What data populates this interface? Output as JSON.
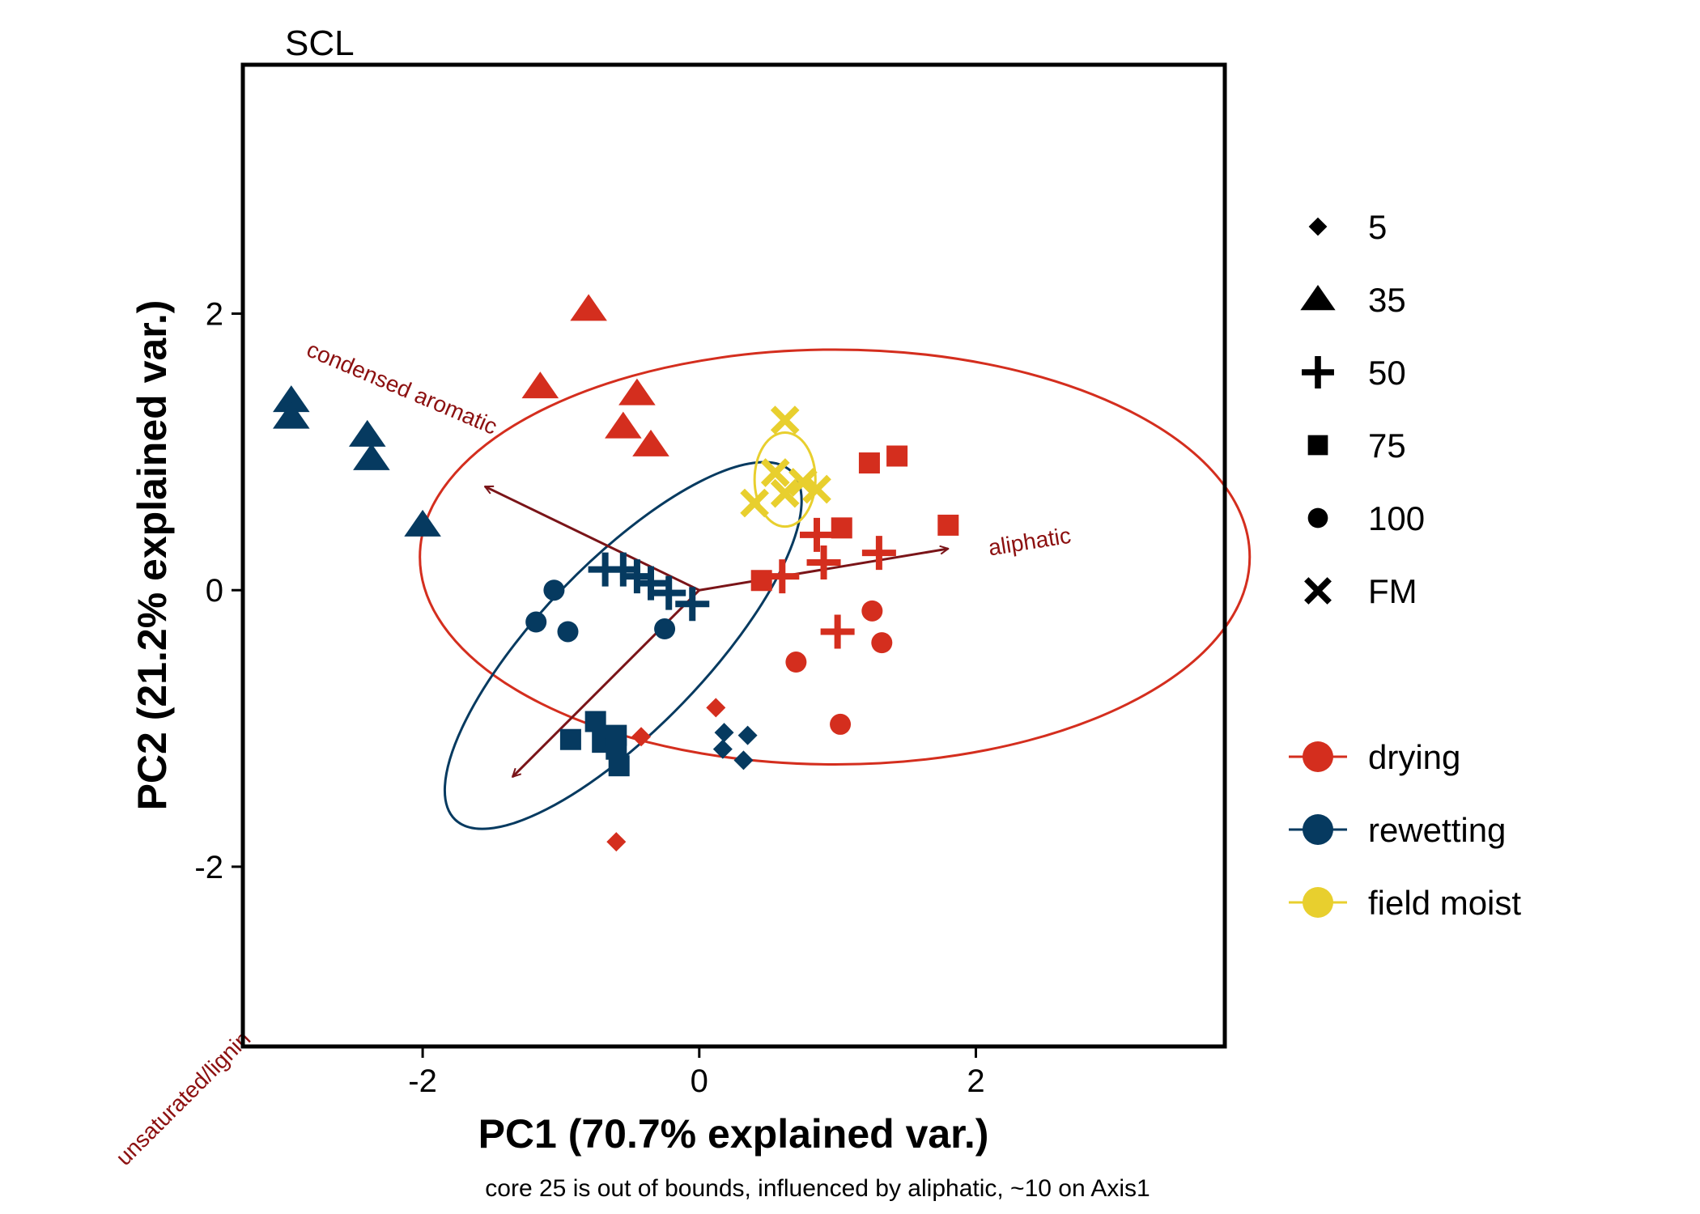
{
  "chart_data": {
    "type": "scatter",
    "title": "SCL",
    "xlabel": "PC1 (70.7% explained var.)",
    "ylabel": "PC2 (21.2% explained var.)",
    "caption": "core 25 is out of bounds, influenced by aliphatic, ~10 on Axis1",
    "xlim": [
      -3.3,
      3.8
    ],
    "ylim": [
      -3.3,
      3.8
    ],
    "x_ticks": [
      -2,
      0,
      2
    ],
    "y_ticks": [
      -2,
      0,
      2
    ],
    "x_tick_labels": [
      "-2",
      "0",
      "2"
    ],
    "y_tick_labels": [
      "-2",
      "0",
      "2"
    ],
    "grid": false,
    "colors": {
      "drying": "#D42E1E",
      "rewetting": "#063A60",
      "field moist": "#E8CF2E",
      "arrow": "#7A1418",
      "arrow_label": "#8C1010"
    },
    "shape_legend": {
      "labels": [
        "5",
        "35",
        "50",
        "75",
        "100",
        "FM"
      ],
      "shapes": [
        "diamond",
        "triangle",
        "plus",
        "square",
        "circle",
        "cross"
      ]
    },
    "color_legend": {
      "labels": [
        "drying",
        "rewetting",
        "field moist"
      ]
    },
    "loadings": [
      {
        "label": "aliphatic",
        "x": 1.8,
        "y": 0.3
      },
      {
        "label": "condensed aromatic",
        "x": -1.55,
        "y": 0.75
      },
      {
        "label": "unsaturated/lignin",
        "x": -1.35,
        "y": -1.35
      }
    ],
    "ellipses": [
      {
        "group": "drying",
        "cx": 0.98,
        "cy": 0.24,
        "rx": 3.0,
        "ry": 1.5,
        "angle": 0
      },
      {
        "group": "rewetting",
        "cx": -0.55,
        "cy": -0.4,
        "rx": 1.75,
        "ry": 0.6,
        "angle": -46
      },
      {
        "group": "field moist",
        "cx": 0.62,
        "cy": 0.8,
        "rx": 0.22,
        "ry": 0.34,
        "angle": 0
      }
    ],
    "series": [
      {
        "group": "drying",
        "shape": "triangle",
        "points": [
          [
            -0.8,
            2.03
          ],
          [
            -1.15,
            1.47
          ],
          [
            -0.45,
            1.42
          ],
          [
            -0.55,
            1.18
          ],
          [
            -0.35,
            1.05
          ]
        ]
      },
      {
        "group": "drying",
        "shape": "square",
        "points": [
          [
            1.23,
            0.92
          ],
          [
            1.43,
            0.97
          ],
          [
            1.8,
            0.47
          ],
          [
            1.03,
            0.45
          ],
          [
            0.45,
            0.07
          ]
        ]
      },
      {
        "group": "drying",
        "shape": "plus",
        "points": [
          [
            0.85,
            0.4
          ],
          [
            1.3,
            0.27
          ],
          [
            0.9,
            0.2
          ],
          [
            0.6,
            0.1
          ],
          [
            1.0,
            -0.3
          ]
        ]
      },
      {
        "group": "drying",
        "shape": "circle",
        "points": [
          [
            1.25,
            -0.15
          ],
          [
            1.32,
            -0.38
          ],
          [
            0.7,
            -0.52
          ],
          [
            1.02,
            -0.97
          ]
        ]
      },
      {
        "group": "drying",
        "shape": "diamond",
        "points": [
          [
            0.12,
            -0.85
          ],
          [
            -0.42,
            -1.06
          ],
          [
            -0.6,
            -1.82
          ],
          [
            -0.65,
            -1.05
          ]
        ]
      },
      {
        "group": "rewetting",
        "shape": "triangle",
        "points": [
          [
            -2.95,
            1.37
          ],
          [
            -2.95,
            1.25
          ],
          [
            -2.4,
            1.12
          ],
          [
            -2.37,
            0.95
          ],
          [
            -2.0,
            0.47
          ]
        ]
      },
      {
        "group": "rewetting",
        "shape": "plus",
        "points": [
          [
            -0.68,
            0.15
          ],
          [
            -0.55,
            0.15
          ],
          [
            -0.45,
            0.1
          ],
          [
            -0.35,
            0.05
          ],
          [
            -0.22,
            -0.02
          ],
          [
            -0.05,
            -0.1
          ]
        ]
      },
      {
        "group": "rewetting",
        "shape": "circle",
        "points": [
          [
            -1.05,
            0.0
          ],
          [
            -1.18,
            -0.23
          ],
          [
            -0.95,
            -0.3
          ],
          [
            -0.25,
            -0.28
          ]
        ]
      },
      {
        "group": "rewetting",
        "shape": "square",
        "points": [
          [
            -0.75,
            -0.95
          ],
          [
            -0.93,
            -1.08
          ],
          [
            -0.7,
            -1.1
          ],
          [
            -0.6,
            -1.05
          ],
          [
            -0.6,
            -1.15
          ],
          [
            -0.58,
            -1.27
          ]
        ]
      },
      {
        "group": "rewetting",
        "shape": "diamond",
        "points": [
          [
            0.18,
            -1.03
          ],
          [
            0.35,
            -1.05
          ],
          [
            0.17,
            -1.15
          ],
          [
            0.32,
            -1.23
          ]
        ]
      },
      {
        "group": "field moist",
        "shape": "cross",
        "points": [
          [
            0.62,
            1.23
          ],
          [
            0.55,
            0.85
          ],
          [
            0.75,
            0.78
          ],
          [
            0.4,
            0.63
          ],
          [
            0.85,
            0.73
          ],
          [
            0.62,
            0.7
          ]
        ]
      }
    ]
  }
}
